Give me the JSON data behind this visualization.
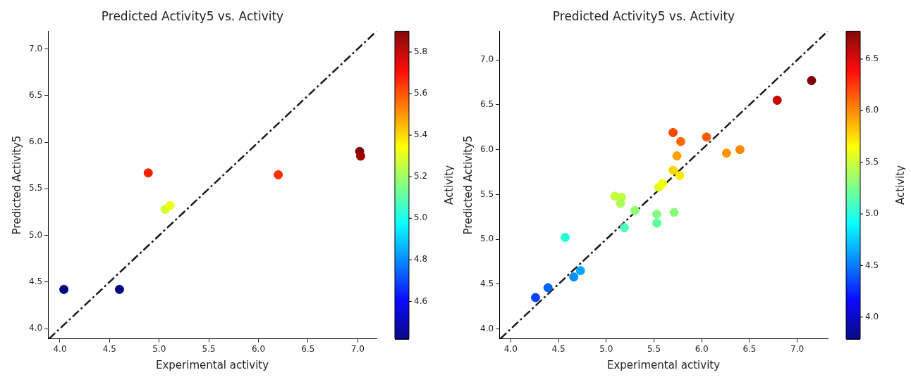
{
  "chart_data": [
    {
      "type": "scatter",
      "title": "Predicted Activity5 vs. Activity",
      "xlabel": "Experimental activity",
      "ylabel": "Predicted Activity5",
      "clabel": "Activity",
      "grid": false,
      "legend": false,
      "xlim": [
        3.88,
        7.19
      ],
      "ylim": [
        3.89,
        7.19
      ],
      "xticks": [
        {
          "value": 4,
          "label": "4.0"
        },
        4.5,
        {
          "value": 5,
          "label": "5.0"
        },
        5.5,
        {
          "value": 6,
          "label": "6.0"
        },
        6.5,
        {
          "value": 7,
          "label": "7.0"
        }
      ],
      "yticks": [
        {
          "value": 4,
          "label": "4.0"
        },
        4.5,
        {
          "value": 5,
          "label": "5.0"
        },
        5.5,
        {
          "value": 6,
          "label": "6.0"
        },
        6.5,
        {
          "value": 7,
          "label": "7.0"
        }
      ],
      "clim": [
        4.42,
        5.9
      ],
      "cticks": [
        4.6,
        4.8,
        {
          "value": 5,
          "label": "5.0"
        },
        5.2,
        5.4,
        5.6,
        5.8
      ],
      "series": [
        {
          "type": "scatter",
          "marker": "circle",
          "x": [
            4.04,
            4.6,
            4.89,
            5.06,
            5.11,
            6.2,
            7.02,
            7.03
          ],
          "values": [
            4.42,
            4.42,
            5.67,
            5.28,
            5.32,
            5.65,
            5.9,
            5.85
          ],
          "cvalues": [
            4.42,
            4.42,
            5.67,
            5.28,
            5.32,
            5.65,
            5.9,
            5.85
          ],
          "colors": [
            "#000080",
            "#000080",
            "#ff1f00",
            "#d2ff2d",
            "#eeff11",
            "#ff2d00",
            "#800000",
            "#a20000"
          ]
        },
        {
          "type": "line",
          "marker": "none",
          "line_style": "dashed",
          "color": "#1a1a1a",
          "x": [
            3.89,
            7.19
          ],
          "values": [
            3.89,
            7.19
          ]
        }
      ]
    },
    {
      "type": "scatter",
      "title": "Predicted Activity5 vs. Activity",
      "xlabel": "Experimental activity",
      "ylabel": "Predicted Activity5",
      "clabel": "Activity",
      "grid": false,
      "legend": false,
      "xlim": [
        3.88,
        7.32
      ],
      "ylim": [
        3.89,
        7.32
      ],
      "xticks": [
        {
          "value": 4,
          "label": "4.0"
        },
        4.5,
        {
          "value": 5,
          "label": "5.0"
        },
        5.5,
        {
          "value": 6,
          "label": "6.0"
        },
        6.5,
        {
          "value": 7,
          "label": "7.0"
        }
      ],
      "yticks": [
        {
          "value": 4,
          "label": "4.0"
        },
        4.5,
        {
          "value": 5,
          "label": "5.0"
        },
        5.5,
        {
          "value": 6,
          "label": "6.0"
        },
        6.5,
        {
          "value": 7,
          "label": "7.0"
        }
      ],
      "clim": [
        3.79,
        6.77
      ],
      "cticks": [
        {
          "value": 4,
          "label": "4.0"
        },
        4.5,
        {
          "value": 5,
          "label": "5.0"
        },
        5.5,
        {
          "value": 6,
          "label": "6.0"
        },
        6.5
      ],
      "series": [
        {
          "type": "scatter",
          "marker": "circle",
          "x": [
            4.26,
            4.39,
            4.66,
            4.73,
            4.57,
            5.19,
            5.3,
            5.09,
            5.16,
            5.15,
            5.53,
            5.53,
            5.71,
            5.55,
            5.59,
            5.7,
            5.77,
            5.74,
            5.7,
            5.78,
            6.05,
            6.26,
            6.4,
            6.79,
            7.15
          ],
          "values": [
            4.35,
            4.46,
            4.58,
            4.65,
            5.02,
            5.13,
            5.32,
            5.48,
            5.47,
            5.4,
            5.28,
            5.18,
            5.3,
            5.58,
            5.62,
            5.77,
            5.71,
            5.93,
            6.19,
            6.09,
            6.14,
            5.96,
            6.0,
            6.55,
            6.77
          ],
          "cvalues": [
            4.35,
            4.46,
            4.58,
            4.65,
            5.02,
            5.13,
            5.32,
            5.48,
            5.47,
            5.4,
            5.28,
            5.18,
            5.3,
            5.58,
            5.62,
            5.77,
            5.71,
            5.93,
            6.19,
            6.09,
            6.14,
            5.96,
            6.0,
            6.55,
            6.77
          ],
          "colors": [
            "#0040ff",
            "#0066ff",
            "#008fff",
            "#00a7ff",
            "#27ffd8",
            "#4cffb3",
            "#8dff72",
            "#c4ff3b",
            "#c1ff3e",
            "#a9ff56",
            "#80ff80",
            "#5dffa2",
            "#86ff79",
            "#e6ff19",
            "#f4ff0b",
            "#ffd700",
            "#ffeb00",
            "#ffa000",
            "#ff4700",
            "#ff6900",
            "#ff5800",
            "#ff9600",
            "#ff8800",
            "#cb0000",
            "#800000"
          ]
        },
        {
          "type": "line",
          "marker": "none",
          "line_style": "dashed",
          "color": "#1a1a1a",
          "x": [
            3.89,
            7.32
          ],
          "values": [
            3.89,
            7.32
          ]
        }
      ]
    }
  ]
}
